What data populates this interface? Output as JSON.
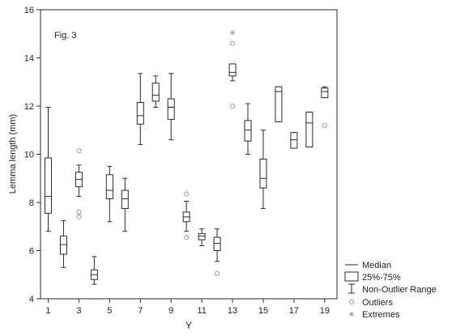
{
  "chart_data": {
    "type": "boxplot",
    "annotation": "Fig. 3",
    "xlabel": "Y",
    "ylabel": "Lemma length (mm)",
    "xlim": [
      0.5,
      19.8
    ],
    "ylim": [
      4,
      16
    ],
    "x_ticks": [
      1,
      3,
      5,
      7,
      9,
      11,
      13,
      15,
      17,
      19
    ],
    "y_ticks": [
      4,
      6,
      8,
      10,
      12,
      14,
      16
    ],
    "legend": {
      "placement": "bottom-right-outside",
      "items": [
        {
          "key": "median",
          "label": "Median"
        },
        {
          "key": "box",
          "label": "25%-75%"
        },
        {
          "key": "whisker",
          "label": "Non-Outlier Range"
        },
        {
          "key": "outlier",
          "label": "Outliers"
        },
        {
          "key": "extreme",
          "label": "Extremes"
        }
      ]
    },
    "boxes": [
      {
        "x": 1,
        "whisker_low": 6.8,
        "q1": 7.55,
        "median": 8.25,
        "q3": 9.85,
        "whisker_high": 11.95,
        "outliers": [],
        "extremes": []
      },
      {
        "x": 2,
        "whisker_low": 5.3,
        "q1": 5.85,
        "median": 6.25,
        "q3": 6.6,
        "whisker_high": 7.25,
        "outliers": [],
        "extremes": []
      },
      {
        "x": 3,
        "whisker_low": 8.25,
        "q1": 8.65,
        "median": 8.95,
        "q3": 9.25,
        "whisker_high": 9.55,
        "outliers": [
          10.15,
          7.6,
          7.4
        ],
        "extremes": []
      },
      {
        "x": 4,
        "whisker_low": 4.6,
        "q1": 4.8,
        "median": 5.0,
        "q3": 5.2,
        "whisker_high": 5.75,
        "outliers": [],
        "extremes": []
      },
      {
        "x": 5,
        "whisker_low": 7.2,
        "q1": 8.15,
        "median": 8.5,
        "q3": 9.15,
        "whisker_high": 9.5,
        "outliers": [],
        "extremes": []
      },
      {
        "x": 6,
        "whisker_low": 6.8,
        "q1": 7.75,
        "median": 8.15,
        "q3": 8.5,
        "whisker_high": 9.0,
        "outliers": [],
        "extremes": []
      },
      {
        "x": 7,
        "whisker_low": 10.4,
        "q1": 11.25,
        "median": 11.6,
        "q3": 12.15,
        "whisker_high": 13.35,
        "outliers": [],
        "extremes": []
      },
      {
        "x": 8,
        "whisker_low": 11.95,
        "q1": 12.2,
        "median": 12.45,
        "q3": 12.95,
        "whisker_high": 13.25,
        "outliers": [],
        "extremes": []
      },
      {
        "x": 9,
        "whisker_low": 10.6,
        "q1": 11.45,
        "median": 11.95,
        "q3": 12.3,
        "whisker_high": 13.35,
        "outliers": [],
        "extremes": []
      },
      {
        "x": 10,
        "whisker_low": 6.8,
        "q1": 7.2,
        "median": 7.4,
        "q3": 7.6,
        "whisker_high": 8.05,
        "outliers": [
          8.35,
          6.55
        ],
        "extremes": []
      },
      {
        "x": 11,
        "whisker_low": 6.2,
        "q1": 6.45,
        "median": 6.6,
        "q3": 6.7,
        "whisker_high": 6.9,
        "outliers": [],
        "extremes": []
      },
      {
        "x": 12,
        "whisker_low": 5.55,
        "q1": 6.0,
        "median": 6.3,
        "q3": 6.55,
        "whisker_high": 6.9,
        "outliers": [
          5.05
        ],
        "extremes": []
      },
      {
        "x": 13,
        "whisker_low": 13.05,
        "q1": 13.25,
        "median": 13.4,
        "q3": 13.75,
        "whisker_high": 13.75,
        "outliers": [
          14.6,
          12.0
        ],
        "extremes": [
          15.05
        ]
      },
      {
        "x": 14,
        "whisker_low": 10.0,
        "q1": 10.55,
        "median": 11.0,
        "q3": 11.4,
        "whisker_high": 12.1,
        "outliers": [],
        "extremes": []
      },
      {
        "x": 15,
        "whisker_low": 7.75,
        "q1": 8.6,
        "median": 9.0,
        "q3": 9.8,
        "whisker_high": 11.0,
        "outliers": [],
        "extremes": []
      },
      {
        "x": 16,
        "whisker_low": 11.35,
        "q1": 11.35,
        "median": 12.6,
        "q3": 12.8,
        "whisker_high": 12.8,
        "outliers": [],
        "extremes": []
      },
      {
        "x": 17,
        "whisker_low": 10.25,
        "q1": 10.25,
        "median": 10.6,
        "q3": 10.9,
        "whisker_high": 10.9,
        "outliers": [],
        "extremes": []
      },
      {
        "x": 18,
        "whisker_low": 10.3,
        "q1": 10.3,
        "median": 11.3,
        "q3": 11.75,
        "whisker_high": 11.75,
        "outliers": [],
        "extremes": []
      },
      {
        "x": 19,
        "whisker_low": 12.35,
        "q1": 12.35,
        "median": 12.6,
        "q3": 12.75,
        "whisker_high": 12.8,
        "outliers": [
          11.2
        ],
        "extremes": []
      }
    ]
  },
  "colors": {
    "stroke": "#2a2a2a",
    "outlier": "#9a9a9a",
    "extreme": "#a8a8a8",
    "background": "#ffffff"
  }
}
